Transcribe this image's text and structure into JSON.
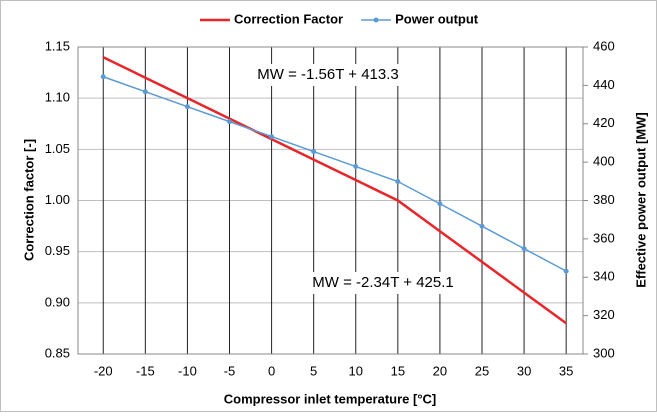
{
  "chart_data": {
    "type": "line",
    "x": [
      -20,
      -15,
      -10,
      -5,
      0,
      5,
      10,
      15,
      20,
      25,
      30,
      35
    ],
    "series": [
      {
        "name": "Correction Factor",
        "color": "#e8262a",
        "axis": "y",
        "values": [
          1.14,
          1.12,
          1.1,
          1.08,
          1.06,
          1.04,
          1.02,
          1.0,
          0.97,
          0.94,
          0.91,
          0.88
        ]
      },
      {
        "name": "Power output",
        "color": "#5b9bd5",
        "axis": "y2",
        "values": [
          444.5,
          436.7,
          428.9,
          421.1,
          413.3,
          405.5,
          397.7,
          389.9,
          378.3,
          366.6,
          354.9,
          343.2
        ]
      }
    ],
    "xlim": [
      -23,
      37
    ],
    "xticks": [
      -20,
      -15,
      -10,
      -5,
      0,
      5,
      10,
      15,
      20,
      25,
      30,
      35
    ],
    "ylim": [
      0.85,
      1.15
    ],
    "yticks": [
      0.85,
      {
        "value": 0.9,
        "label": "0.90"
      },
      0.95,
      {
        "value": 1.0,
        "label": "1.00"
      },
      1.05,
      {
        "value": 1.1,
        "label": "1.10"
      },
      1.15
    ],
    "y2lim": [
      300,
      460
    ],
    "y2ticks": [
      300,
      320,
      340,
      360,
      380,
      400,
      420,
      440,
      460
    ],
    "xlabel": "Compressor inlet temperature [°C]",
    "ylabel": "Correction factor [-]",
    "y2label": "Effective power output [MW]",
    "annotations": [
      "MW = -1.56T + 413.3",
      "MW = -2.34T + 425.1"
    ],
    "grid": true,
    "legend": "top"
  }
}
